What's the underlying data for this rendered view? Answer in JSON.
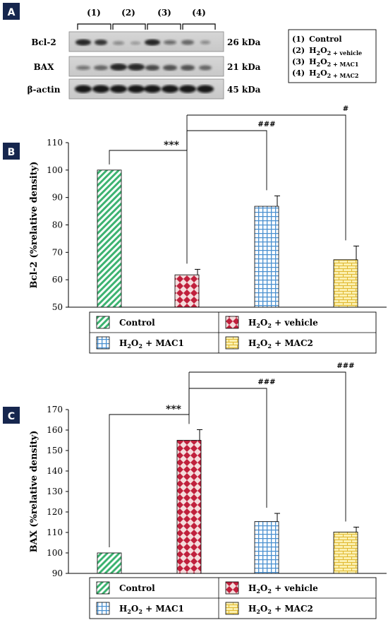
{
  "panel_labels": [
    "A",
    "B",
    "C"
  ],
  "blot": {
    "lane_labels": [
      "(1)",
      "(2)",
      "(3)",
      "(4)"
    ],
    "rows": [
      {
        "protein": "Bcl-2",
        "size": "26 kDa"
      },
      {
        "protein": "BAX",
        "size": "21 kDa"
      },
      {
        "protein": "β-actin",
        "size": "45 kDa"
      }
    ],
    "key": [
      {
        "num": "(1)",
        "pre": "Control",
        "sub": "",
        "post": ""
      },
      {
        "num": "(2)",
        "pre": "H",
        "sub": "2",
        "post": "O"
      },
      {
        "num": "(3)",
        "pre": "H",
        "sub": "2",
        "post": "O"
      },
      {
        "num": "(4)",
        "pre": "H",
        "sub": "2",
        "post": "O"
      }
    ],
    "key_suffix": [
      "",
      "2 + vehicle",
      "2 + MAC1",
      "2 + MAC2"
    ]
  },
  "legend_items": [
    {
      "name": "Control",
      "pattern": "diag"
    },
    {
      "name": "H2O2 + vehicle",
      "pattern": "check"
    },
    {
      "name": "H2O2 + MAC1",
      "pattern": "grid"
    },
    {
      "name": "H2O2 + MAC2",
      "pattern": "brick"
    }
  ],
  "colors": {
    "control": "#3cb371",
    "vehicle": "#c0203c",
    "mac1": "#4a90d0",
    "mac2": "#e8c840"
  },
  "chart_data": [
    {
      "type": "bar",
      "panel": "B",
      "ylabel": "Bcl-2 (%relative density)",
      "categories": [
        "Control",
        "H2O2 + vehicle",
        "H2O2 + MAC1",
        "H2O2 + MAC2"
      ],
      "values": [
        100,
        61.8,
        86.8,
        67.3
      ],
      "errors": [
        0,
        2.0,
        3.8,
        5.0
      ],
      "ylim": [
        50,
        110
      ],
      "yticks": [
        50,
        60,
        70,
        80,
        90,
        100,
        110
      ],
      "grid": false,
      "legend": "bottom",
      "annotations": [
        {
          "label": "***",
          "from": 0,
          "to": 1
        },
        {
          "label": "###",
          "from": 1,
          "to": 2
        },
        {
          "label": "#",
          "from": 1,
          "to": 3
        }
      ]
    },
    {
      "type": "bar",
      "panel": "C",
      "ylabel": "BAX (%relative density)",
      "categories": [
        "Control",
        "H2O2 + vehicle",
        "H2O2 + MAC1",
        "H2O2 + MAC2"
      ],
      "values": [
        100,
        155,
        115.3,
        110.2
      ],
      "errors": [
        0,
        5.2,
        4.0,
        2.4
      ],
      "ylim": [
        90,
        170
      ],
      "yticks": [
        90,
        100,
        110,
        120,
        130,
        140,
        150,
        160,
        170
      ],
      "grid": false,
      "legend": "bottom",
      "annotations": [
        {
          "label": "***",
          "from": 0,
          "to": 1
        },
        {
          "label": "###",
          "from": 1,
          "to": 2
        },
        {
          "label": "###",
          "from": 1,
          "to": 3
        }
      ]
    }
  ]
}
